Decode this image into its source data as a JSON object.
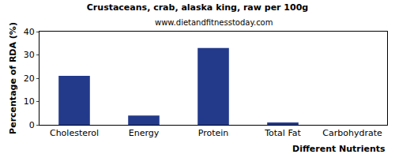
{
  "chart_data": {
    "type": "bar",
    "title": "Crustaceans, crab, alaska king, raw per 100g",
    "subtitle": "www.dietandfitnesstoday.com",
    "x_label": "Different Nutrients",
    "y_label": "Percentage of RDA (%)",
    "categories": [
      "Cholesterol",
      "Energy",
      "Protein",
      "Total Fat",
      "Carbohydrate"
    ],
    "values": [
      21,
      4,
      33,
      1,
      0
    ],
    "color": "#233a8b",
    "ylim": [
      0,
      40
    ],
    "yticks": [
      0,
      10,
      20,
      30,
      40
    ],
    "grid": false
  }
}
